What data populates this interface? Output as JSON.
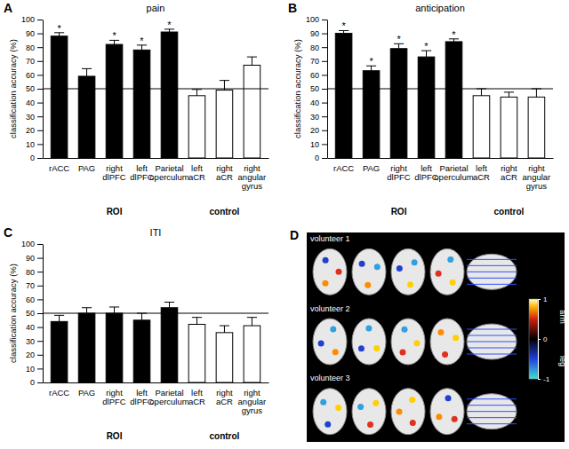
{
  "chart_data": [
    {
      "type": "bar",
      "label": "A",
      "title": "pain",
      "y_label": "classification accuracy (%)",
      "categories": [
        "rACC",
        "PAG",
        "right dlPFC",
        "left dlPFC",
        "Parietal operculum",
        "left aCR",
        "right aCR",
        "right angular gyrus"
      ],
      "category_groups": [
        "ROI",
        "ROI",
        "ROI",
        "ROI",
        "ROI",
        "control",
        "control",
        "control"
      ],
      "values": [
        88,
        59,
        82,
        78,
        91,
        45,
        49,
        67
      ],
      "errors": [
        2.5,
        5.5,
        3,
        3.5,
        2,
        4.5,
        7,
        6
      ],
      "annotations": [
        "*",
        null,
        "*",
        "*",
        "*",
        null,
        null,
        null
      ],
      "colors": [
        "#000000",
        "#000000",
        "#000000",
        "#000000",
        "#000000",
        "#ffffff",
        "#ffffff",
        "#ffffff"
      ],
      "reference_line": 50,
      "ylim": [
        0,
        100
      ],
      "yticks": [
        0,
        10,
        20,
        30,
        40,
        50,
        60,
        70,
        80,
        90,
        100
      ]
    },
    {
      "type": "bar",
      "label": "B",
      "title": "anticipation",
      "y_label": "classification accuracy (%)",
      "categories": [
        "rACC",
        "PAG",
        "right dlPFC",
        "left dlPFC",
        "Parietal operculum",
        "left aCR",
        "right aCR",
        "right angular gyrus"
      ],
      "category_groups": [
        "ROI",
        "ROI",
        "ROI",
        "ROI",
        "ROI",
        "control",
        "control",
        "control"
      ],
      "values": [
        90,
        63,
        79,
        73,
        84,
        45,
        44,
        44
      ],
      "errors": [
        2,
        3.5,
        3.5,
        4.5,
        2,
        5,
        3.5,
        6
      ],
      "annotations": [
        "*",
        "*",
        "*",
        "*",
        "*",
        null,
        null,
        null
      ],
      "colors": [
        "#000000",
        "#000000",
        "#000000",
        "#000000",
        "#000000",
        "#ffffff",
        "#ffffff",
        "#ffffff"
      ],
      "reference_line": 50,
      "ylim": [
        0,
        100
      ],
      "yticks": [
        0,
        10,
        20,
        30,
        40,
        50,
        60,
        70,
        80,
        90,
        100
      ]
    },
    {
      "type": "bar",
      "label": "C",
      "title": "ITI",
      "y_label": "classification accuracy (%)",
      "categories": [
        "rACC",
        "PAG",
        "right dlPFC",
        "left dlPFC",
        "Parietal operculum",
        "left aCR",
        "right aCR",
        "right angular gyrus"
      ],
      "category_groups": [
        "ROI",
        "ROI",
        "ROI",
        "ROI",
        "ROI",
        "control",
        "control",
        "control"
      ],
      "values": [
        44,
        50,
        50,
        45,
        54,
        42,
        36,
        41
      ],
      "errors": [
        4.5,
        4,
        4.5,
        5,
        4,
        5,
        5,
        6
      ],
      "annotations": [
        null,
        null,
        null,
        null,
        null,
        null,
        null,
        null
      ],
      "colors": [
        "#000000",
        "#000000",
        "#000000",
        "#000000",
        "#000000",
        "#ffffff",
        "#ffffff",
        "#ffffff"
      ],
      "reference_line": 50,
      "ylim": [
        0,
        100
      ],
      "yticks": [
        0,
        10,
        20,
        30,
        40,
        50,
        60,
        70,
        80,
        90,
        100
      ]
    }
  ],
  "panel_d": {
    "label": "D",
    "volunteers": [
      "volunteer 1",
      "volunteer 2",
      "volunteer 3"
    ],
    "colorbar": {
      "range": [
        -1,
        1
      ],
      "ticks": [
        1,
        0,
        -1
      ],
      "labels": [
        "arm",
        "leg"
      ]
    }
  }
}
